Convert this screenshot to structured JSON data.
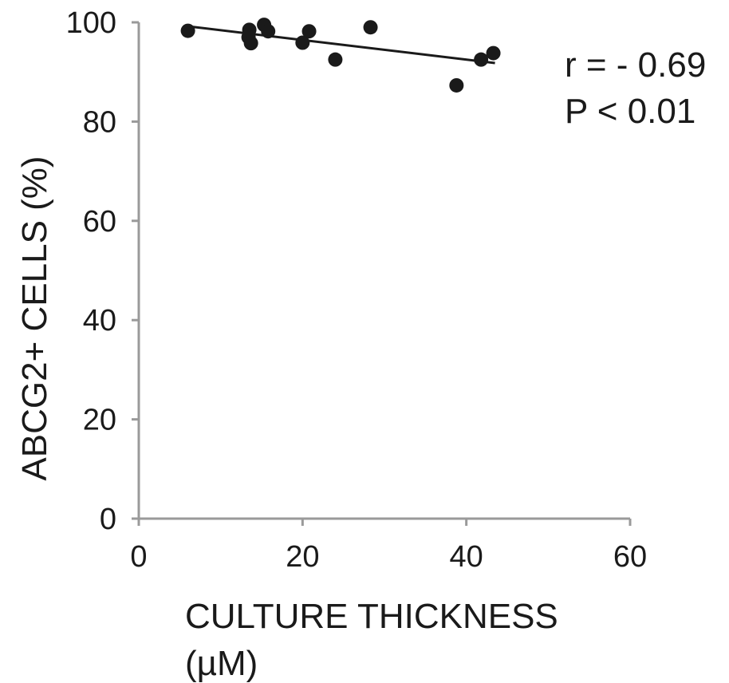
{
  "chart_data": {
    "type": "scatter",
    "xlabel_lines": [
      "CULTURE THICKNESS",
      "(µM)"
    ],
    "ylabel": "ABCG2+ CELLS (%)",
    "xlim": [
      0,
      60
    ],
    "ylim": [
      0,
      100
    ],
    "xticks": [
      0,
      20,
      40,
      60
    ],
    "yticks": [
      0,
      20,
      40,
      60,
      80,
      100
    ],
    "grid": false,
    "points": [
      {
        "x": 6,
        "y": 98.3
      },
      {
        "x": 13.5,
        "y": 98.5
      },
      {
        "x": 13.4,
        "y": 97.0
      },
      {
        "x": 13.7,
        "y": 95.8
      },
      {
        "x": 15.3,
        "y": 99.5
      },
      {
        "x": 15.8,
        "y": 98.2
      },
      {
        "x": 20,
        "y": 95.9
      },
      {
        "x": 20.8,
        "y": 98.2
      },
      {
        "x": 24,
        "y": 92.5
      },
      {
        "x": 28.3,
        "y": 99.0
      },
      {
        "x": 38.8,
        "y": 87.3
      },
      {
        "x": 41.8,
        "y": 92.5
      },
      {
        "x": 43.3,
        "y": 93.8
      }
    ],
    "trendline": {
      "x": [
        6,
        43.5
      ],
      "y": [
        99.2,
        91.8
      ]
    },
    "annotations": [
      "r = - 0.69",
      "P < 0.01"
    ],
    "colors": {
      "points": "#1a1a1a",
      "line": "#1a1a1a",
      "axis": "#9a9a9a",
      "text": "#1a1a1a"
    }
  }
}
